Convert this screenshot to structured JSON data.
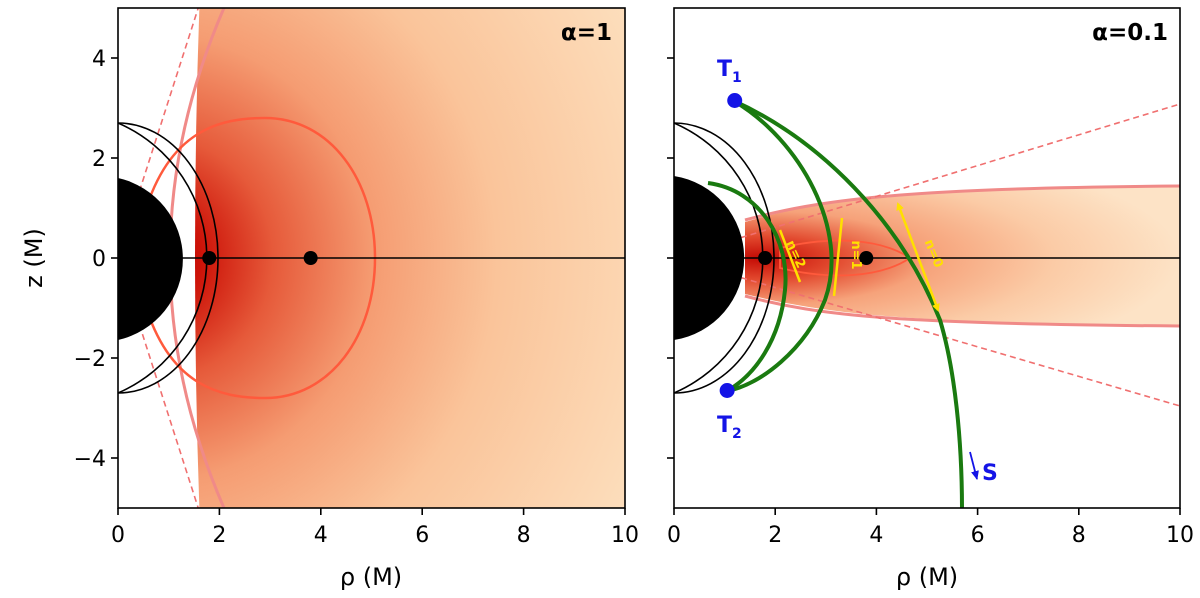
{
  "chart_data": [
    {
      "type": "heatmap",
      "title": "α=1",
      "xlabel": "ρ (M)",
      "ylabel": "z (M)",
      "xlim": [
        0,
        10
      ],
      "ylim": [
        -5,
        5
      ],
      "xticks": [
        0,
        2,
        4,
        6,
        8,
        10
      ],
      "yticks": [
        -4,
        -2,
        0,
        2,
        4
      ],
      "xtick_labels": [
        "0",
        "2",
        "4",
        "6",
        "8",
        "10"
      ],
      "ytick_labels": [
        "−4",
        "−2",
        "0",
        "2",
        "4"
      ],
      "points": [
        {
          "x": 1.8,
          "z": 0
        },
        {
          "x": 3.8,
          "z": 0
        }
      ],
      "colors": {
        "disk_peak": "#c80000",
        "disk_outer": "#fde0b8",
        "contour": "#ff5a3c",
        "boundary": "#f08080"
      }
    },
    {
      "type": "heatmap",
      "title": "α=0.1",
      "xlabel": "ρ (M)",
      "xlim": [
        0,
        10
      ],
      "ylim": [
        -5,
        5
      ],
      "xticks": [
        0,
        2,
        4,
        6,
        8,
        10
      ],
      "yticks": [
        -4,
        -2,
        0,
        2,
        4
      ],
      "xtick_labels": [
        "0",
        "2",
        "4",
        "6",
        "8",
        "10"
      ],
      "points": [
        {
          "x": 1.8,
          "z": 0
        },
        {
          "x": 3.8,
          "z": 0
        }
      ],
      "markers": [
        {
          "name": "T",
          "sub": "1",
          "x": 1.2,
          "z": 3.15
        },
        {
          "name": "T",
          "sub": "2",
          "x": 1.05,
          "z": -2.65
        }
      ],
      "annotations": [
        "n=0",
        "n=1",
        "n=2"
      ],
      "arrow_label": "S",
      "colors": {
        "trajectory": "#1a7a10",
        "marker": "#1414e6",
        "annotation": "#ffe000"
      }
    }
  ]
}
